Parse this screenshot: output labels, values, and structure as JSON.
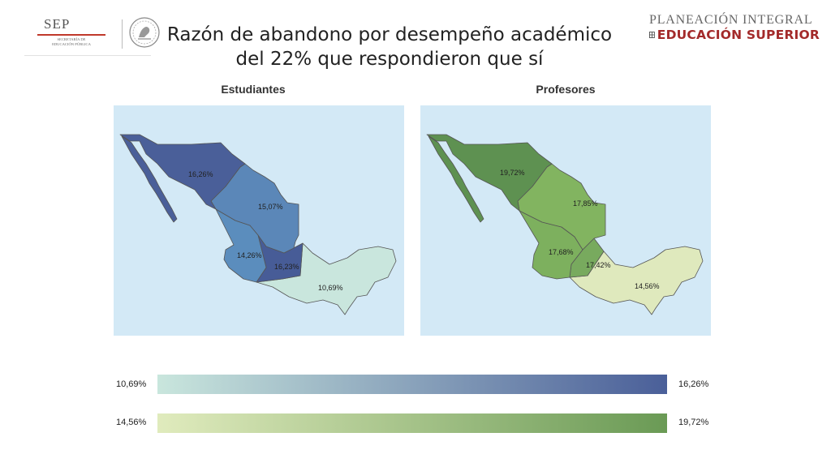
{
  "header": {
    "title": "Razón de abandono por desempeño académico del 22% que respondieron que sí",
    "logo_left": {
      "name": "SEP",
      "subtitle_line1": "SECRETARÍA DE",
      "subtitle_line2": "EDUCACIÓN PÚBLICA"
    },
    "brand_right": {
      "line1": "PLANEACIÓN INTEGRAL",
      "line2": "EDUCACIÓN SUPERIOR",
      "color": "#a32a2a"
    }
  },
  "maps": [
    {
      "heading": "Estudiantes",
      "regions": [
        {
          "label": "16,26%",
          "value": 16.26,
          "color": "#4a5f99"
        },
        {
          "label": "15,07%",
          "value": 15.07,
          "color": "#5b87b8"
        },
        {
          "label": "14,26%",
          "value": 14.26,
          "color": "#5b8dbd"
        },
        {
          "label": "16,23%",
          "value": 16.23,
          "color": "#475c97"
        },
        {
          "label": "10,69%",
          "value": 10.69,
          "color": "#c9e6dd"
        }
      ]
    },
    {
      "heading": "Profesores",
      "regions": [
        {
          "label": "19,72%",
          "value": 19.72,
          "color": "#5e9151"
        },
        {
          "label": "17,85%",
          "value": 17.85,
          "color": "#82b460"
        },
        {
          "label": "17,68%",
          "value": 17.68,
          "color": "#7db05e"
        },
        {
          "label": "17,42%",
          "value": 17.42,
          "color": "#78aa5e"
        },
        {
          "label": "14,56%",
          "value": 14.56,
          "color": "#dfe9bd"
        }
      ]
    }
  ],
  "legends": [
    {
      "min_label": "10,69%",
      "max_label": "16,26%",
      "color_from": "#c9e6dd",
      "color_to": "#4a5f99"
    },
    {
      "min_label": "14,56%",
      "max_label": "19,72%",
      "color_from": "#e0ebbd",
      "color_to": "#6a9a55"
    }
  ],
  "colors": {
    "water": "#d3e9f6",
    "border": "#555555"
  }
}
